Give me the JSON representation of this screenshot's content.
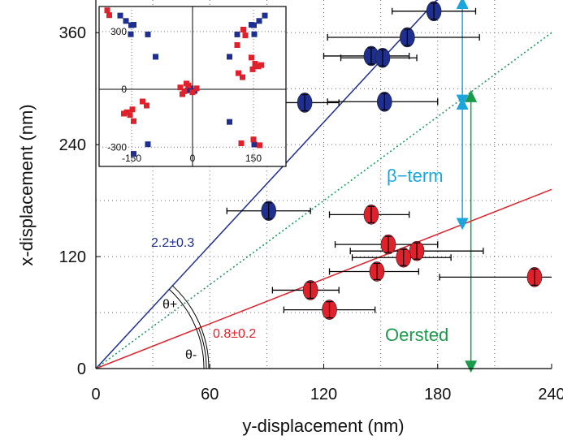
{
  "chart_data": {
    "type": "scatter",
    "xlabel": "y-displacement (nm)",
    "ylabel": "x-displacement (nm)",
    "xlim": [
      0,
      240
    ],
    "ylim": [
      0,
      395
    ],
    "x_ticks": [
      "0",
      "60",
      "120",
      "180",
      "240"
    ],
    "y_ticks": [
      "0",
      "120",
      "240",
      "360"
    ],
    "grid": true,
    "series": [
      {
        "color": "#1f2f8f",
        "points": [
          {
            "x": 178,
            "y": 383,
            "xerr_low": 22,
            "xerr_high": 22
          },
          {
            "x": 164,
            "y": 355,
            "xerr_low": 42,
            "xerr_high": 38
          },
          {
            "x": 145,
            "y": 335,
            "xerr_low": 25,
            "xerr_high": 20
          },
          {
            "x": 151,
            "y": 333,
            "xerr_low": 22,
            "xerr_high": 18
          },
          {
            "x": 110,
            "y": 285,
            "xerr_low": 18,
            "xerr_high": 18
          },
          {
            "x": 152,
            "y": 286,
            "xerr_low": 30,
            "xerr_high": 28
          },
          {
            "x": 91,
            "y": 169,
            "xerr_low": 22,
            "xerr_high": 22
          }
        ]
      },
      {
        "color": "#e0202a",
        "points": [
          {
            "x": 145,
            "y": 165,
            "xerr_low": 22,
            "xerr_high": 20
          },
          {
            "x": 154,
            "y": 133,
            "xerr_low": 28,
            "xerr_high": 26
          },
          {
            "x": 169,
            "y": 126,
            "xerr_low": 35,
            "xerr_high": 35
          },
          {
            "x": 162,
            "y": 119,
            "xerr_low": 27,
            "xerr_high": 25
          },
          {
            "x": 148,
            "y": 104,
            "xerr_low": 25,
            "xerr_high": 22
          },
          {
            "x": 231,
            "y": 98,
            "xerr_low": 50,
            "xerr_high": 50
          },
          {
            "x": 113,
            "y": 84,
            "xerr_low": 20,
            "xerr_high": 15
          },
          {
            "x": 123,
            "y": 63,
            "xerr_low": 24,
            "xerr_high": 24
          }
        ]
      }
    ],
    "fit_lines": [
      {
        "label": "2.2±0.3",
        "slope": 2.2,
        "color": "#1f2f8f",
        "style": "solid"
      },
      {
        "label": "0.8±0.2",
        "slope": 0.8,
        "color": "#e0202a",
        "style": "solid"
      },
      {
        "label": "",
        "slope": 1.5,
        "color": "#1a9a5a",
        "style": "dotted"
      }
    ],
    "annotations": {
      "theta_plus": "θ+",
      "theta_minus": "θ-",
      "beta_term": "β−term",
      "oersted": "Oersted"
    },
    "annotation_colors": {
      "beta_term": "#1aa6dc",
      "oersted": "#1a9a4a"
    },
    "inset": {
      "type": "scatter",
      "xlim": [
        -230,
        230
      ],
      "ylim": [
        -400,
        430
      ],
      "x_ticks": [
        "-150",
        "0",
        "150"
      ],
      "y_ticks": [
        "300",
        "0",
        "-300"
      ],
      "series": [
        {
          "color": "#1f2f8f",
          "points": [
            [
              -178,
              383
            ],
            [
              -164,
              355
            ],
            [
              -145,
              335
            ],
            [
              -151,
              333
            ],
            [
              -110,
              285
            ],
            [
              -152,
              286
            ],
            [
              -91,
              169
            ],
            [
              -5,
              5
            ],
            [
              -12,
              -5
            ],
            [
              5,
              -8
            ],
            [
              -8,
              2
            ],
            [
              178,
              383
            ],
            [
              164,
              355
            ],
            [
              145,
              335
            ],
            [
              151,
              333
            ],
            [
              110,
              285
            ],
            [
              152,
              286
            ],
            [
              91,
              169
            ],
            [
              -145,
              -335
            ],
            [
              -110,
              -285
            ],
            [
              152,
              -286
            ],
            [
              91,
              -169
            ]
          ]
        },
        {
          "color": "#e0202a",
          "points": [
            [
              -210,
              410
            ],
            [
              -205,
              385
            ],
            [
              -145,
              -165
            ],
            [
              -154,
              -133
            ],
            [
              -169,
              -126
            ],
            [
              -162,
              -119
            ],
            [
              -148,
              -104
            ],
            [
              -231,
              -98
            ],
            [
              -113,
              -84
            ],
            [
              -123,
              -63
            ],
            [
              145,
              165
            ],
            [
              154,
              133
            ],
            [
              169,
              126
            ],
            [
              162,
              119
            ],
            [
              148,
              104
            ],
            [
              231,
              98
            ],
            [
              113,
              84
            ],
            [
              123,
              63
            ],
            [
              -30,
              10
            ],
            [
              -20,
              -10
            ],
            [
              -10,
              20
            ],
            [
              0,
              -15
            ],
            [
              -25,
              -25
            ],
            [
              10,
              5
            ],
            [
              -15,
              30
            ],
            [
              120,
              -280
            ],
            [
              150,
              -260
            ],
            [
              165,
              -290
            ],
            [
              125,
              310
            ],
            [
              130,
              280
            ],
            [
              110,
              230
            ]
          ]
        }
      ]
    }
  }
}
